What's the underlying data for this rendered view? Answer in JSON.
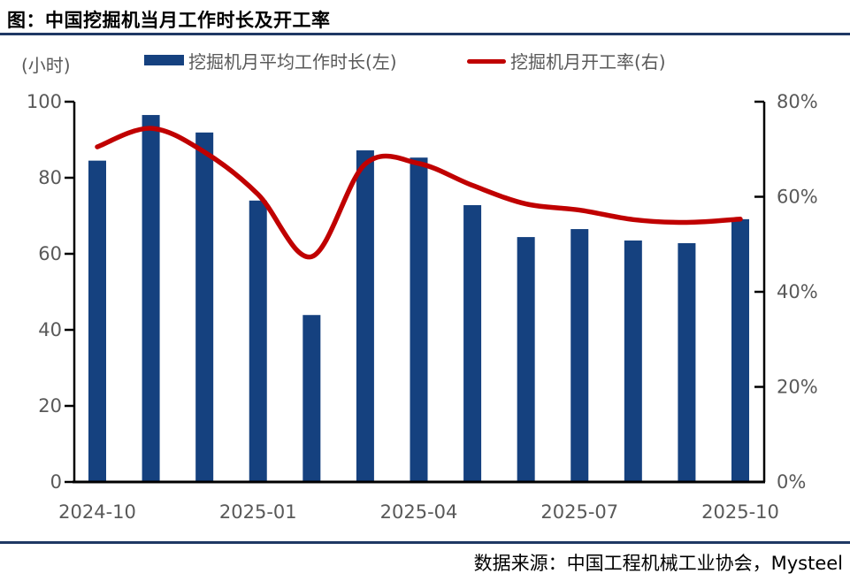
{
  "header": {
    "title": "图：中国挖掘机当月工作时长及开工率"
  },
  "legend": {
    "unit_label": "(小时)",
    "bar_series_label": "挖掘机月平均工作时长(左)",
    "line_series_label": "挖掘机月开工率(右)"
  },
  "footer": {
    "source": "数据来源：中国工程机械工业协会，Mysteel"
  },
  "colors": {
    "bar": "#15417F",
    "line": "#C00000",
    "rule": "#1F3864",
    "axis_text": "#595959",
    "axis_line": "#000000"
  },
  "chart_data": {
    "type": "bar",
    "subtype": "bar+line dual-axis",
    "title": "中国挖掘机当月工作时长及开工率",
    "categories": [
      "2024-10",
      "2024-11",
      "2024-12",
      "2025-01",
      "2025-02",
      "2025-03",
      "2025-04",
      "2025-05",
      "2025-06",
      "2025-07",
      "2025-08",
      "2025-09",
      "2025-10"
    ],
    "series": [
      {
        "name": "挖掘机月平均工作时长(左)",
        "type": "bar",
        "axis": "left",
        "unit": "小时",
        "values": [
          84.5,
          96.5,
          91.9,
          74.0,
          43.9,
          87.2,
          85.3,
          72.8,
          64.4,
          66.5,
          63.5,
          62.8,
          69.1
        ]
      },
      {
        "name": "挖掘机月开工率(右)",
        "type": "line",
        "axis": "right",
        "unit": "%",
        "values": [
          70.5,
          74.4,
          69.4,
          60.5,
          47.4,
          66.9,
          67.0,
          62.4,
          58.5,
          57.2,
          55.2,
          54.6,
          55.3
        ]
      }
    ],
    "left_axis": {
      "label": "(小时)",
      "min": 0,
      "max": 100,
      "ticks": [
        0,
        20,
        40,
        60,
        80,
        100
      ]
    },
    "right_axis": {
      "min": 0,
      "max": 80,
      "ticks": [
        0,
        20,
        40,
        60,
        80
      ],
      "suffix": "%"
    },
    "x_ticks_shown": [
      "2024-10",
      "2025-01",
      "2025-04",
      "2025-07",
      "2025-10"
    ],
    "grid": false,
    "legend_position": "top"
  }
}
